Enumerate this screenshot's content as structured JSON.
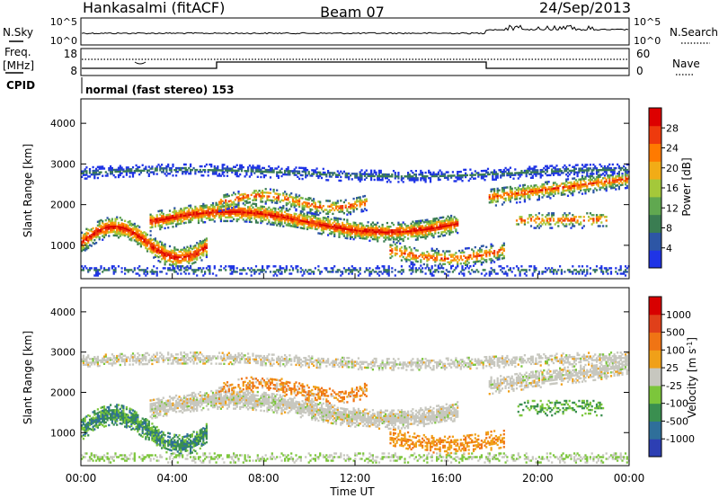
{
  "header": {
    "station": "Hankasalmi (fitACF)",
    "beam": "Beam 07",
    "date": "24/Sep/2013"
  },
  "top_panels": {
    "nsky_label": "N.Sky",
    "nsearch_label": "N.Search",
    "nsky_ticks": [
      "10^5",
      "10^0"
    ],
    "nsearch_ticks": [
      "10^5",
      "10^0"
    ],
    "freq_label_1": "Freq.",
    "freq_label_2": "[MHz]",
    "freq_ticks": [
      "18",
      "8"
    ],
    "nave_label": "Nave",
    "nave_ticks": [
      "60",
      "0"
    ],
    "cpid_label": "CPID",
    "cpid_text": "normal (fast stereo) 153"
  },
  "chart_data": [
    {
      "type": "heatmap",
      "name": "Power",
      "ylabel": "Slant Range [km]",
      "ylim": [
        180,
        4600
      ],
      "yticks": [
        "4000",
        "3000",
        "2000",
        "1000"
      ],
      "colorbar_label": "Power [dB]",
      "colorbar_ticks": [
        "28",
        "24",
        "20",
        "16",
        "12",
        "8",
        "4"
      ],
      "colorbar_range": [
        0,
        32
      ],
      "colors": [
        "#1f34e6",
        "#2d56a5",
        "#3a7d52",
        "#60a850",
        "#a4c83a",
        "#f2ac16",
        "#ff7a00",
        "#ee3a0d",
        "#dd0000"
      ]
    },
    {
      "type": "heatmap",
      "name": "Velocity",
      "ylabel": "Slant Range [km]",
      "ylim": [
        180,
        4600
      ],
      "yticks": [
        "4000",
        "3000",
        "2000",
        "1000"
      ],
      "colorbar_label": "Velocity [m s",
      "colorbar_label_sup": "-1",
      "colorbar_label_end": "]",
      "colorbar_ticks": [
        "1000",
        "500",
        "100",
        "25",
        "-25",
        "-100",
        "-500",
        "-1000"
      ],
      "colors": [
        "#2d3fb3",
        "#2f6f9a",
        "#3a8f50",
        "#7cc63b",
        "#c7c7bf",
        "#f0a018",
        "#f07414",
        "#e0401a",
        "#d80000"
      ],
      "xlabel": "Time UT",
      "xticks": [
        "00:00",
        "04:00",
        "08:00",
        "12:00",
        "16:00",
        "20:00",
        "00:00"
      ],
      "xlim_hours": [
        0,
        24
      ]
    }
  ]
}
